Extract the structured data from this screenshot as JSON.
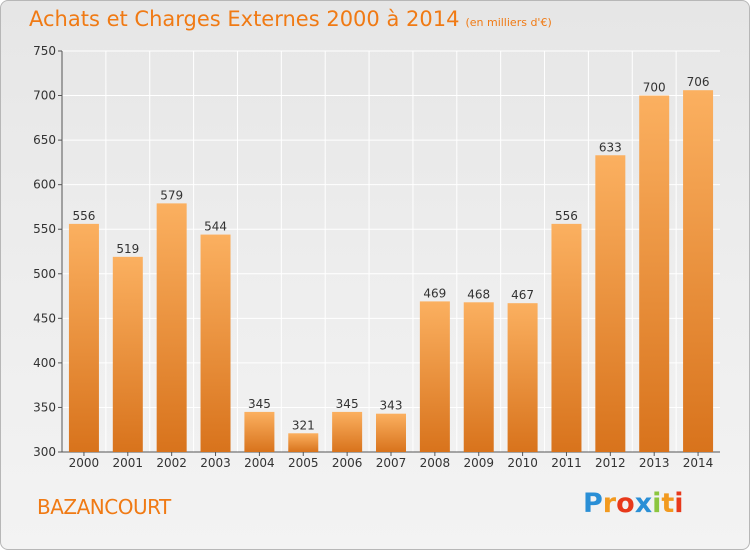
{
  "title": "Achats et Charges Externes 2000 à 2014",
  "subtitle": "(en milliers d'€)",
  "place": "BAZANCOURT",
  "logo": {
    "letters": [
      "P",
      "r",
      "o",
      "x",
      "i",
      "t",
      "i"
    ],
    "colors": [
      "#2a8fd6",
      "#f29a1f",
      "#e8391b",
      "#2a8fd6",
      "#8cc63f",
      "#f29a1f",
      "#e8391b"
    ]
  },
  "colors": {
    "bar_light": "#fbb060",
    "bar_dark": "#d8731c",
    "title": "#f07a14",
    "grid": "#ffffff"
  },
  "chart_data": {
    "type": "bar",
    "title": "Achats et Charges Externes 2000 à 2014",
    "subtitle": "(en milliers d'€)",
    "categories": [
      "2000",
      "2001",
      "2002",
      "2003",
      "2004",
      "2005",
      "2006",
      "2007",
      "2008",
      "2009",
      "2010",
      "2011",
      "2012",
      "2013",
      "2014"
    ],
    "values": [
      556,
      519,
      579,
      544,
      345,
      321,
      345,
      343,
      469,
      468,
      467,
      556,
      633,
      700,
      706
    ],
    "ylim": [
      300,
      750
    ],
    "yticks": [
      300,
      350,
      400,
      450,
      500,
      550,
      600,
      650,
      700,
      750
    ],
    "grid": true
  }
}
